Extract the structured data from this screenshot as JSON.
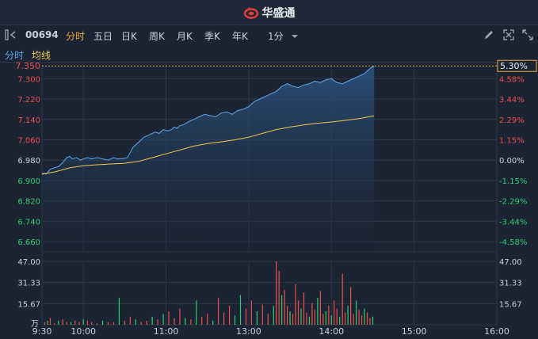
{
  "app": {
    "brand": "华盛通",
    "stock_code": "00694"
  },
  "toolbar": {
    "tabs": [
      {
        "label": "分时",
        "active": true
      },
      {
        "label": "五日",
        "active": false
      },
      {
        "label": "日K",
        "active": false
      },
      {
        "label": "周K",
        "active": false
      },
      {
        "label": "月K",
        "active": false
      },
      {
        "label": "季K",
        "active": false
      },
      {
        "label": "年K",
        "active": false
      }
    ],
    "interval": "1分",
    "icons": [
      "pencil-icon",
      "fullscreen-icon",
      "expand-icon"
    ]
  },
  "legend": {
    "price_label": "分时",
    "avg_label": "均线"
  },
  "colors": {
    "price_line": "#5fa8ee",
    "avg_line": "#f2c94c",
    "up": "#ef4d4d",
    "down": "#2ecc71",
    "grid": "#2c3647",
    "last_price": "#f2a93b",
    "area": "#1d3a5c"
  },
  "chart_data": [
    {
      "type": "line",
      "x_ticks": [
        "9:30",
        "10:00",
        "11:00",
        "13:00",
        "14:00",
        "15:00",
        "16:00"
      ],
      "y_ticks_left": [
        "7.300",
        "7.220",
        "7.140",
        "7.060",
        "6.980",
        "6.900",
        "6.820",
        "6.740",
        "6.660"
      ],
      "y_ticks_right": [
        "4.58%",
        "3.44%",
        "2.29%",
        "1.15%",
        "0.00%",
        "-1.15%",
        "-2.29%",
        "-3.44%",
        "-4.58%"
      ],
      "ylim": [
        6.62,
        7.36
      ],
      "prev_close": 6.98,
      "last_price_label": "7.350",
      "last_pct_label": "5.30%",
      "series": [
        {
          "name": "分时",
          "x": [
            0,
            3,
            6,
            9,
            12,
            15,
            18,
            20,
            22,
            25,
            28,
            30,
            33,
            36,
            40,
            44,
            48,
            52,
            55,
            58,
            62,
            66,
            70,
            74,
            78,
            82,
            85,
            88,
            91,
            94,
            96,
            98,
            100,
            103,
            106,
            110,
            114,
            118,
            122,
            126,
            130,
            134,
            138,
            142,
            146,
            150,
            154,
            158,
            162,
            166,
            170,
            174,
            178,
            182,
            186,
            190,
            194,
            198,
            202,
            206,
            210,
            214,
            218,
            222,
            226,
            230,
            234,
            238,
            241
          ],
          "values": [
            6.93,
            6.925,
            6.945,
            6.95,
            6.955,
            6.97,
            6.99,
            6.995,
            6.985,
            6.99,
            6.98,
            6.985,
            6.99,
            6.985,
            6.99,
            6.985,
            6.98,
            6.99,
            6.985,
            6.985,
            6.99,
            7.03,
            7.05,
            7.07,
            7.08,
            7.09,
            7.085,
            7.1,
            7.095,
            7.1,
            7.11,
            7.105,
            7.115,
            7.12,
            7.13,
            7.14,
            7.15,
            7.16,
            7.155,
            7.15,
            7.165,
            7.17,
            7.16,
            7.175,
            7.18,
            7.19,
            7.21,
            7.22,
            7.23,
            7.24,
            7.25,
            7.27,
            7.28,
            7.27,
            7.265,
            7.275,
            7.28,
            7.29,
            7.285,
            7.295,
            7.3,
            7.285,
            7.28,
            7.29,
            7.3,
            7.31,
            7.32,
            7.34,
            7.35
          ]
        },
        {
          "name": "均线",
          "x": [
            0,
            10,
            20,
            30,
            40,
            50,
            60,
            70,
            80,
            90,
            100,
            110,
            120,
            130,
            140,
            150,
            160,
            170,
            180,
            190,
            200,
            210,
            220,
            230,
            241
          ],
          "values": [
            6.925,
            6.935,
            6.95,
            6.958,
            6.962,
            6.965,
            6.968,
            6.975,
            6.99,
            7.005,
            7.02,
            7.035,
            7.045,
            7.052,
            7.06,
            7.07,
            7.085,
            7.1,
            7.11,
            7.118,
            7.125,
            7.13,
            7.136,
            7.143,
            7.154
          ]
        }
      ]
    },
    {
      "type": "bar",
      "y_ticks": [
        "47.00",
        "31.33",
        "15.67"
      ],
      "unit": "万",
      "ylim": [
        0,
        47
      ],
      "x": [
        2,
        4,
        6,
        9,
        12,
        15,
        18,
        21,
        24,
        27,
        30,
        33,
        36,
        40,
        44,
        48,
        52,
        56,
        60,
        64,
        68,
        72,
        76,
        80,
        84,
        88,
        92,
        96,
        100,
        104,
        108,
        112,
        116,
        120,
        124,
        128,
        132,
        136,
        140,
        144,
        148,
        152,
        156,
        160,
        164,
        168,
        170,
        172,
        174,
        176,
        178,
        180,
        182,
        184,
        186,
        188,
        190,
        192,
        194,
        196,
        198,
        200,
        202,
        204,
        206,
        208,
        210,
        212,
        214,
        216,
        218,
        220,
        222,
        224,
        226,
        228,
        230,
        232,
        234,
        236,
        238,
        240
      ],
      "values": [
        2,
        3,
        5,
        1,
        3,
        4,
        2,
        2,
        3,
        2,
        4,
        3,
        2,
        1,
        3,
        2,
        2,
        20,
        3,
        6,
        4,
        2,
        3,
        6,
        4,
        8,
        10,
        5,
        12,
        5,
        4,
        18,
        6,
        8,
        3,
        20,
        9,
        14,
        7,
        22,
        12,
        18,
        10,
        15,
        8,
        14,
        47,
        40,
        22,
        26,
        14,
        10,
        8,
        30,
        18,
        12,
        24,
        9,
        6,
        16,
        11,
        20,
        25,
        8,
        10,
        14,
        7,
        18,
        12,
        6,
        38,
        9,
        14,
        28,
        8,
        18,
        11,
        7,
        12,
        9,
        5,
        6
      ],
      "colors": [
        "u",
        "d",
        "u",
        "u",
        "d",
        "u",
        "u",
        "d",
        "u",
        "u",
        "d",
        "u",
        "u",
        "u",
        "d",
        "u",
        "u",
        "d",
        "u",
        "u",
        "d",
        "u",
        "u",
        "d",
        "u",
        "d",
        "u",
        "u",
        "u",
        "d",
        "u",
        "d",
        "u",
        "u",
        "d",
        "u",
        "u",
        "u",
        "d",
        "d",
        "u",
        "u",
        "d",
        "u",
        "u",
        "d",
        "u",
        "u",
        "d",
        "u",
        "u",
        "d",
        "u",
        "u",
        "u",
        "d",
        "u",
        "u",
        "d",
        "u",
        "u",
        "d",
        "u",
        "u",
        "d",
        "u",
        "d",
        "u",
        "u",
        "d",
        "u",
        "u",
        "d",
        "u",
        "u",
        "d",
        "u",
        "u",
        "d",
        "u",
        "u",
        "d"
      ]
    }
  ]
}
